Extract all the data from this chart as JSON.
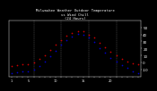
{
  "title": "Milwaukee Weather Outdoor Temperature\nvs Wind Chill\n(24 Hours)",
  "hours": [
    1,
    2,
    3,
    4,
    5,
    6,
    7,
    8,
    9,
    10,
    11,
    12,
    13,
    14,
    15,
    16,
    17,
    18,
    19,
    20,
    21,
    22,
    23,
    24
  ],
  "temp": [
    -5,
    -4,
    -3,
    -2,
    0,
    5,
    10,
    18,
    25,
    32,
    38,
    42,
    45,
    44,
    40,
    35,
    28,
    22,
    15,
    10,
    5,
    2,
    -1,
    -3
  ],
  "windchill": [
    -15,
    -14,
    -13,
    -12,
    -10,
    -5,
    2,
    9,
    17,
    25,
    32,
    37,
    41,
    39,
    35,
    29,
    21,
    14,
    7,
    1,
    -4,
    -8,
    -12,
    -15
  ],
  "temp_color": "#cc0000",
  "windchill_color": "#0000cc",
  "background_color": "#000000",
  "plot_bg_color": "#000000",
  "grid_color": "#666666",
  "tick_color": "#ffffff",
  "title_color": "#ffffff",
  "ylim": [
    -20,
    60
  ],
  "ytick_positions": [
    -10,
    0,
    10,
    20,
    30,
    40,
    50
  ],
  "ytick_labels": [
    "-10",
    "0",
    "10",
    "20",
    "30",
    "40",
    "50"
  ],
  "xtick_labels": [
    "1",
    "",
    "",
    "5",
    "",
    "",
    "",
    "",
    "10",
    "",
    "",
    "",
    "",
    "15",
    "",
    "",
    "",
    "",
    "20",
    "",
    "",
    "",
    "",
    ""
  ],
  "title_fontsize": 2.8,
  "dot_size": 1.5
}
